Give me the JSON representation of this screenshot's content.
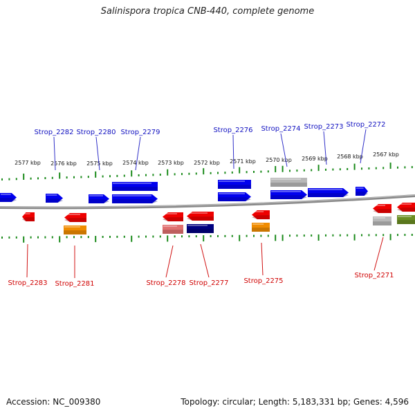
{
  "title": "Salinispora tropica CNB-440, complete genome",
  "footer": {
    "accession": "Accession: NC_009380",
    "summary": "Topology: circular; Length: 5,183,331 bp; Genes: 4,596"
  },
  "scale": {
    "unit": "kbp",
    "ticks": [
      {
        "kbp": 2577,
        "label": "2577 kbp"
      },
      {
        "kbp": 2576,
        "label": "2576 kbp"
      },
      {
        "kbp": 2575,
        "label": "2575 kbp"
      },
      {
        "kbp": 2574,
        "label": "2574 kbp"
      },
      {
        "kbp": 2573,
        "label": "2573 kbp"
      },
      {
        "kbp": 2572,
        "label": "2572 kbp"
      },
      {
        "kbp": 2571,
        "label": "2571 kbp"
      },
      {
        "kbp": 2570,
        "label": "2570 kbp"
      },
      {
        "kbp": 2569,
        "label": "2569 kbp"
      },
      {
        "kbp": 2568,
        "label": "2568 kbp"
      },
      {
        "kbp": 2567,
        "label": "2567 kbp"
      }
    ]
  },
  "colors": {
    "forward_strand": "#0000ee",
    "reverse_strand": "#ee0000",
    "backbone": "#777777",
    "tick": "#1a8a1a",
    "gray_feature": "#b8b8b8",
    "orange_feature": "#f08c00",
    "pink_feature": "#e07070",
    "navy_feature": "#000080",
    "olive_feature": "#6b8e23"
  },
  "labels_top": [
    {
      "text": "Strop_2282"
    },
    {
      "text": "Strop_2280"
    },
    {
      "text": "Strop_2279"
    },
    {
      "text": "Strop_2276"
    },
    {
      "text": "Strop_2274"
    },
    {
      "text": "Strop_2273"
    },
    {
      "text": "Strop_2272"
    }
  ],
  "labels_bottom": [
    {
      "text": "Strop_2283"
    },
    {
      "text": "Strop_2281"
    },
    {
      "text": "Strop_2278"
    },
    {
      "text": "Strop_2277"
    },
    {
      "text": "Strop_2275"
    },
    {
      "text": "Strop_2271"
    }
  ]
}
